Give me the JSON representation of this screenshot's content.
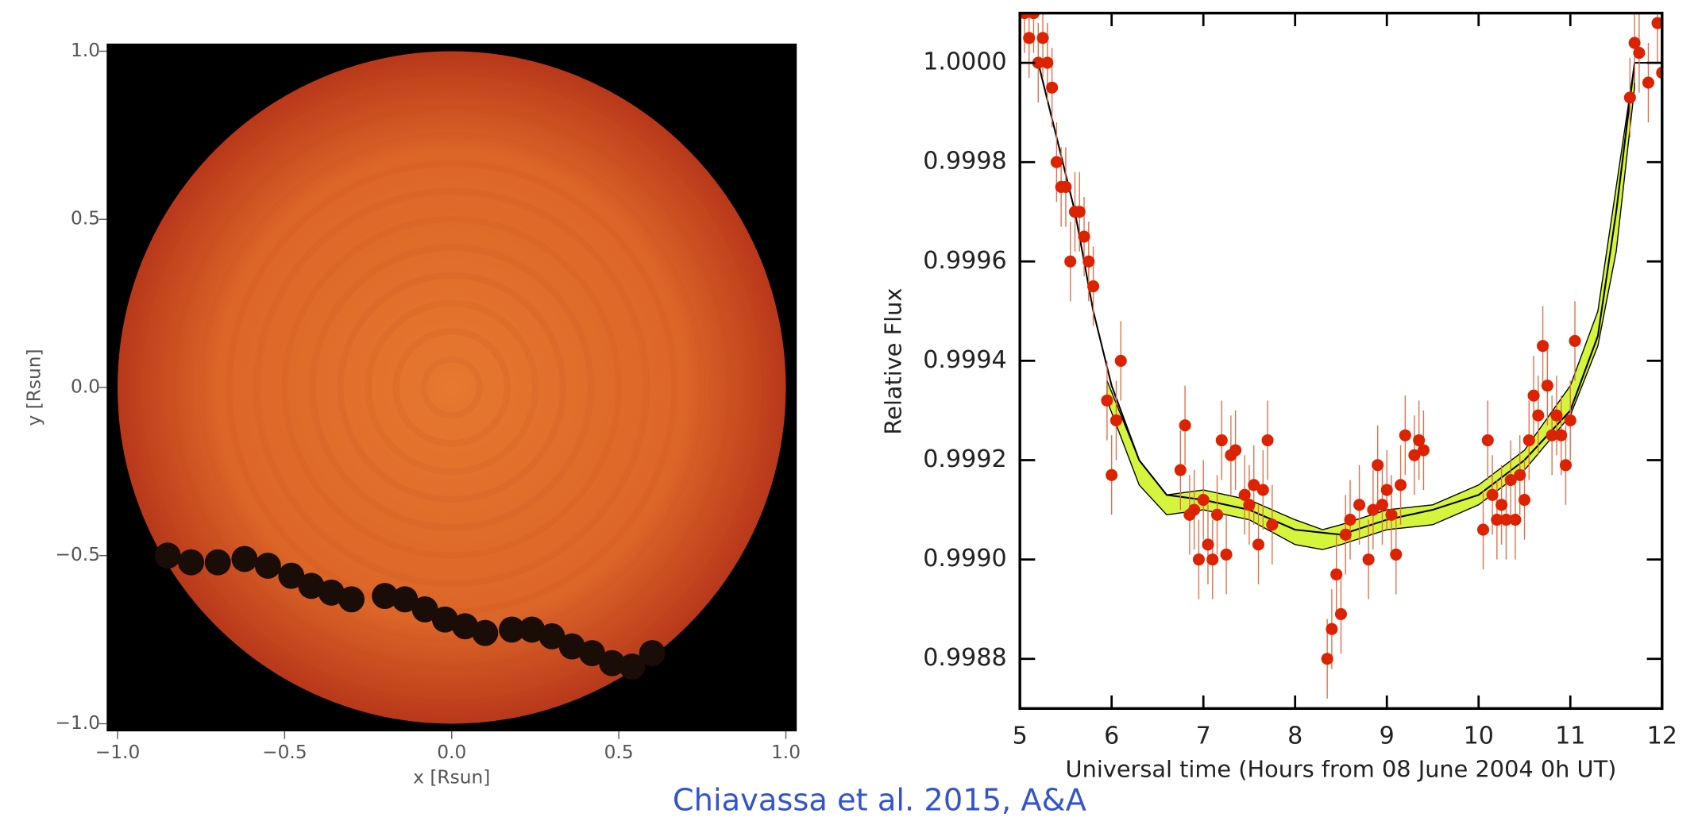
{
  "chart_data": [
    {
      "type": "image",
      "xlabel": "x [Rsun]",
      "ylabel": "y [Rsun]",
      "xlim": [
        -1,
        1
      ],
      "ylim": [
        -1,
        1
      ],
      "xticks": [
        {
          "value": -1,
          "label": "−1.0"
        },
        {
          "value": -0.5,
          "label": "−0.5"
        },
        {
          "value": 0,
          "label": "0.0"
        },
        0.5,
        {
          "value": 1,
          "label": "1.0"
        }
      ],
      "yticks": [
        {
          "value": -1,
          "label": "−1.0"
        },
        {
          "value": -0.5,
          "label": "−0.5"
        },
        {
          "value": 0,
          "label": "0.0"
        },
        0.5,
        {
          "value": 1,
          "label": "1.0"
        }
      ],
      "track": {
        "color": "#1a0d08",
        "x": [
          -0.85,
          -0.78,
          -0.7,
          -0.62,
          -0.55,
          -0.48,
          -0.42,
          -0.36,
          -0.3,
          -0.2,
          -0.14,
          -0.08,
          -0.02,
          0.04,
          0.1,
          0.18,
          0.24,
          0.3,
          0.36,
          0.42,
          0.48,
          0.54,
          0.6
        ],
        "y": [
          -0.5,
          -0.52,
          -0.52,
          -0.51,
          -0.53,
          -0.56,
          -0.59,
          -0.61,
          -0.63,
          -0.62,
          -0.63,
          -0.66,
          -0.69,
          -0.71,
          -0.73,
          -0.72,
          -0.72,
          -0.74,
          -0.77,
          -0.79,
          -0.82,
          -0.83,
          -0.79
        ]
      }
    },
    {
      "type": "scatter",
      "xlabel": "Universal time (Hours from 08 June 2004 0h UT)",
      "ylabel": "Relative Flux",
      "xlim": [
        5,
        12
      ],
      "ylim": [
        0.9987,
        1.0001
      ],
      "xticks": [
        5,
        6,
        7,
        8,
        9,
        10,
        11,
        12
      ],
      "yticks": [
        {
          "value": 0.9988,
          "label": "0.9988"
        },
        {
          "value": 0.999,
          "label": "0.9990"
        },
        {
          "value": 0.9992,
          "label": "0.9992"
        },
        {
          "value": 0.9994,
          "label": "0.9994"
        },
        {
          "value": 0.9996,
          "label": "0.9996"
        },
        {
          "value": 0.9998,
          "label": "0.9998"
        },
        {
          "value": 1,
          "label": "1.0000"
        }
      ],
      "points": {
        "color": "#dd2200",
        "x": [
          5.05,
          5.1,
          5.15,
          5.2,
          5.25,
          5.3,
          5.35,
          5.4,
          5.45,
          5.5,
          5.55,
          5.6,
          5.65,
          5.7,
          5.75,
          5.8,
          5.95,
          6.0,
          6.05,
          6.1,
          6.75,
          6.8,
          6.85,
          6.9,
          6.95,
          7.0,
          7.05,
          7.1,
          7.15,
          7.2,
          7.25,
          7.3,
          7.35,
          7.45,
          7.5,
          7.55,
          7.6,
          7.65,
          7.7,
          7.75,
          8.35,
          8.4,
          8.45,
          8.5,
          8.55,
          8.6,
          8.7,
          8.8,
          8.85,
          8.9,
          8.95,
          9.0,
          9.05,
          9.1,
          9.15,
          9.2,
          9.3,
          9.35,
          9.4,
          10.05,
          10.1,
          10.15,
          10.2,
          10.25,
          10.3,
          10.35,
          10.4,
          10.45,
          10.5,
          10.55,
          10.6,
          10.65,
          10.7,
          10.75,
          10.8,
          10.85,
          10.9,
          10.95,
          11.0,
          11.05,
          11.65,
          11.7,
          11.75,
          11.85,
          11.95,
          12.0
        ],
        "values": [
          1.0001,
          1.00005,
          1.0001,
          1.0,
          1.00005,
          1.0,
          0.99995,
          0.9998,
          0.99975,
          0.99975,
          0.9996,
          0.9997,
          0.9997,
          0.99965,
          0.9996,
          0.99955,
          0.99932,
          0.99917,
          0.99928,
          0.9994,
          0.99918,
          0.99927,
          0.99909,
          0.9991,
          0.999,
          0.99912,
          0.99903,
          0.999,
          0.99909,
          0.99924,
          0.99901,
          0.99921,
          0.99922,
          0.99913,
          0.99911,
          0.99915,
          0.99903,
          0.99914,
          0.99924,
          0.99907,
          0.9988,
          0.99886,
          0.99897,
          0.99889,
          0.99905,
          0.99908,
          0.99911,
          0.999,
          0.9991,
          0.99919,
          0.99911,
          0.99914,
          0.99909,
          0.99901,
          0.99915,
          0.99925,
          0.99921,
          0.99924,
          0.99922,
          0.99906,
          0.99924,
          0.99913,
          0.99908,
          0.99911,
          0.99908,
          0.99916,
          0.99908,
          0.99917,
          0.99912,
          0.99924,
          0.99933,
          0.99929,
          0.99943,
          0.99935,
          0.99925,
          0.99929,
          0.99925,
          0.99919,
          0.99928,
          0.99944,
          0.99993,
          1.00004,
          1.00002,
          0.99996,
          1.00008,
          0.99998
        ],
        "errors": [
          8e-05,
          8e-05,
          8e-05,
          8e-05,
          8e-05,
          8e-05,
          8e-05,
          8e-05,
          8e-05,
          8e-05,
          8e-05,
          8e-05,
          8e-05,
          8e-05,
          8e-05,
          8e-05,
          8e-05,
          8e-05,
          8e-05,
          8e-05,
          8e-05,
          8e-05,
          8e-05,
          8e-05,
          8e-05,
          8e-05,
          8e-05,
          8e-05,
          8e-05,
          8e-05,
          8e-05,
          8e-05,
          8e-05,
          8e-05,
          8e-05,
          8e-05,
          8e-05,
          8e-05,
          8e-05,
          8e-05,
          8e-05,
          8e-05,
          8e-05,
          8e-05,
          8e-05,
          8e-05,
          8e-05,
          8e-05,
          8e-05,
          8e-05,
          8e-05,
          8e-05,
          8e-05,
          8e-05,
          8e-05,
          8e-05,
          8e-05,
          8e-05,
          8e-05,
          8e-05,
          8e-05,
          8e-05,
          8e-05,
          8e-05,
          8e-05,
          8e-05,
          8e-05,
          8e-05,
          8e-05,
          8e-05,
          8e-05,
          8e-05,
          8e-05,
          8e-05,
          8e-05,
          8e-05,
          8e-05,
          8e-05,
          8e-05,
          8e-05,
          8e-05,
          8e-05,
          8e-05,
          8e-05,
          8e-05,
          8e-05
        ]
      },
      "band": {
        "color": "#d4f53c",
        "x": [
          5.95,
          6.3,
          6.6,
          7.0,
          7.5,
          8.0,
          8.3,
          8.5,
          9.0,
          9.5,
          10.0,
          10.5,
          11.0,
          11.3,
          11.5,
          11.7
        ],
        "lower": [
          0.99932,
          0.99915,
          0.99909,
          0.9991,
          0.99908,
          0.99903,
          0.99902,
          0.99903,
          0.99906,
          0.99907,
          0.99911,
          0.99918,
          0.99929,
          0.99943,
          0.99962,
          0.99995
        ],
        "upper": [
          0.99936,
          0.9992,
          0.99913,
          0.99914,
          0.99912,
          0.99908,
          0.99906,
          0.99907,
          0.9991,
          0.99911,
          0.99915,
          0.99922,
          0.99935,
          0.9995,
          0.99975,
          1.0
        ]
      },
      "model": {
        "color": "#000000",
        "x": [
          5,
          5.2,
          5.4,
          5.6,
          5.8,
          6.0,
          6.3,
          6.6,
          7.0,
          7.5,
          8.0,
          8.5,
          9.0,
          9.5,
          10.0,
          10.5,
          11.0,
          11.3,
          11.5,
          11.7,
          12
        ],
        "values": [
          1.0,
          1.0,
          0.99985,
          0.9997,
          0.9995,
          0.99935,
          0.9992,
          0.99913,
          0.99912,
          0.9991,
          0.99906,
          0.99905,
          0.99908,
          0.9991,
          0.99913,
          0.9992,
          0.9993,
          0.99945,
          0.9997,
          1.0,
          1.0
        ]
      }
    }
  ],
  "caption": "Chiavassa et al. 2015, A&A"
}
